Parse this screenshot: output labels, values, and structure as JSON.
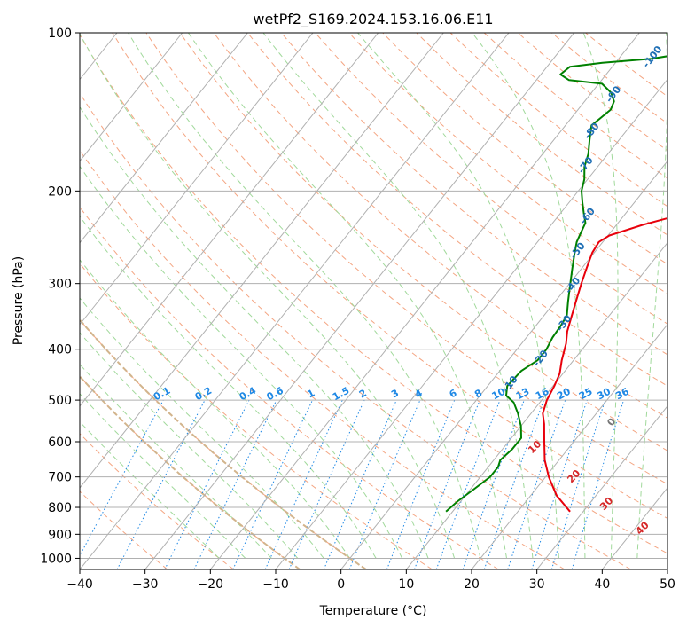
{
  "chart_data": {
    "type": "line",
    "title": "wetPf2_S169.2024.153.16.06.E11",
    "xlabel": "Temperature (°C)",
    "ylabel": "Pressure (hPa)",
    "xlim": [
      -40,
      50
    ],
    "ylim": [
      1050,
      100
    ],
    "yscale": "log",
    "x_ticks": [
      -40,
      -30,
      -20,
      -10,
      0,
      10,
      20,
      30,
      40,
      50
    ],
    "y_ticks": [
      100,
      200,
      300,
      400,
      500,
      600,
      700,
      800,
      900,
      1000
    ],
    "grid": true,
    "series": [
      {
        "color": "#e8000b",
        "points": [
          [
            28.0,
            815
          ],
          [
            24.0,
            760
          ],
          [
            20.5,
            700
          ],
          [
            17.8,
            650
          ],
          [
            15.5,
            600
          ],
          [
            13.3,
            555
          ],
          [
            11.8,
            530
          ],
          [
            10.8,
            500
          ],
          [
            10.2,
            470
          ],
          [
            9.5,
            445
          ],
          [
            8.2,
            420
          ],
          [
            6.8,
            390
          ],
          [
            5.5,
            370
          ],
          [
            4.5,
            350
          ],
          [
            3.2,
            325
          ],
          [
            1.8,
            300
          ],
          [
            0.7,
            280
          ],
          [
            -0.3,
            262
          ],
          [
            -0.6,
            250
          ],
          [
            0.2,
            243
          ],
          [
            4.0,
            232
          ],
          [
            8.5,
            222
          ],
          [
            13.5,
            210
          ],
          [
            16.5,
            200
          ],
          [
            18.3,
            190
          ],
          [
            19.5,
            180
          ],
          [
            20.4,
            170
          ],
          [
            21.0,
            160
          ],
          [
            21.3,
            150
          ],
          [
            21.2,
            140
          ],
          [
            20.8,
            130
          ],
          [
            20.5,
            120
          ],
          [
            20.8,
            110
          ],
          [
            21.0,
            100
          ]
        ]
      },
      {
        "color": "#008000",
        "points": [
          [
            9.0,
            815
          ],
          [
            9.5,
            780
          ],
          [
            10.5,
            740
          ],
          [
            11.5,
            700
          ],
          [
            11.5,
            670
          ],
          [
            11.0,
            650
          ],
          [
            11.5,
            620
          ],
          [
            11.5,
            590
          ],
          [
            10.0,
            560
          ],
          [
            8.0,
            530
          ],
          [
            6.0,
            505
          ],
          [
            4.0,
            490
          ],
          [
            3.0,
            470
          ],
          [
            3.3,
            440
          ],
          [
            4.5,
            420
          ],
          [
            4.5,
            400
          ],
          [
            4.0,
            380
          ],
          [
            3.8,
            360
          ],
          [
            3.5,
            345
          ],
          [
            2.0,
            325
          ],
          [
            0.5,
            305
          ],
          [
            -1.5,
            280
          ],
          [
            -3.0,
            262
          ],
          [
            -4.0,
            250
          ],
          [
            -4.5,
            240
          ],
          [
            -5.0,
            230
          ],
          [
            -6.5,
            220
          ],
          [
            -8.0,
            210
          ],
          [
            -9.5,
            200
          ],
          [
            -10.5,
            190
          ],
          [
            -12.0,
            180
          ],
          [
            -13.0,
            170
          ],
          [
            -14.5,
            160
          ],
          [
            -16.0,
            150
          ],
          [
            -15.5,
            145
          ],
          [
            -15.0,
            140
          ],
          [
            -15.5,
            135
          ],
          [
            -17.0,
            130
          ],
          [
            -19.5,
            125
          ],
          [
            -25.0,
            123
          ],
          [
            -27.0,
            120
          ],
          [
            -26.5,
            116
          ],
          [
            -22.0,
            114
          ],
          [
            -15.0,
            112
          ],
          [
            -8.0,
            108
          ],
          [
            -3.0,
            104
          ],
          [
            0.0,
            100
          ]
        ]
      }
    ],
    "background_lines": {
      "isotherm_color": "#b0b0b0",
      "dry_adiabat_color": "#f4a582",
      "moist_adiabat_color": "#a1d99b",
      "mixing_ratio_color": "#1e88e5",
      "reference_adiabat_color": "#d2b48c"
    },
    "dry_adiabat_labels": [
      "10",
      "20",
      "30",
      "40"
    ],
    "moist_adiabat_labels": [
      "-100",
      "-90",
      "-80",
      "-70",
      "-60",
      "-50",
      "-40",
      "-30",
      "-20",
      "-10",
      "0"
    ],
    "mixing_ratio_labels": [
      "0.1",
      "0.2",
      "0.4",
      "0.6",
      "1",
      "1.5",
      "2",
      "3",
      "4",
      "6",
      "8",
      "10",
      "13",
      "16",
      "20",
      "25",
      "30",
      "36"
    ]
  }
}
